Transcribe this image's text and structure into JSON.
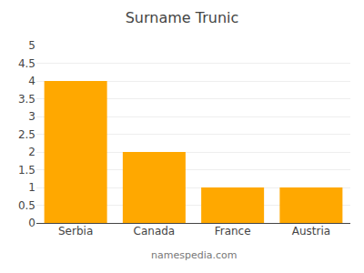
{
  "chart_data": {
    "type": "bar",
    "title": "Surname Trunic",
    "categories": [
      "Serbia",
      "Canada",
      "France",
      "Austria"
    ],
    "values": [
      4,
      2,
      1,
      1
    ],
    "color": "#FFA800",
    "ylim": [
      0,
      5
    ],
    "yticks": [
      0,
      0.5,
      1,
      1.5,
      2,
      2.5,
      3,
      3.5,
      4,
      4.5,
      5
    ],
    "grid": true,
    "annotations": [
      "namespedia.com"
    ]
  }
}
